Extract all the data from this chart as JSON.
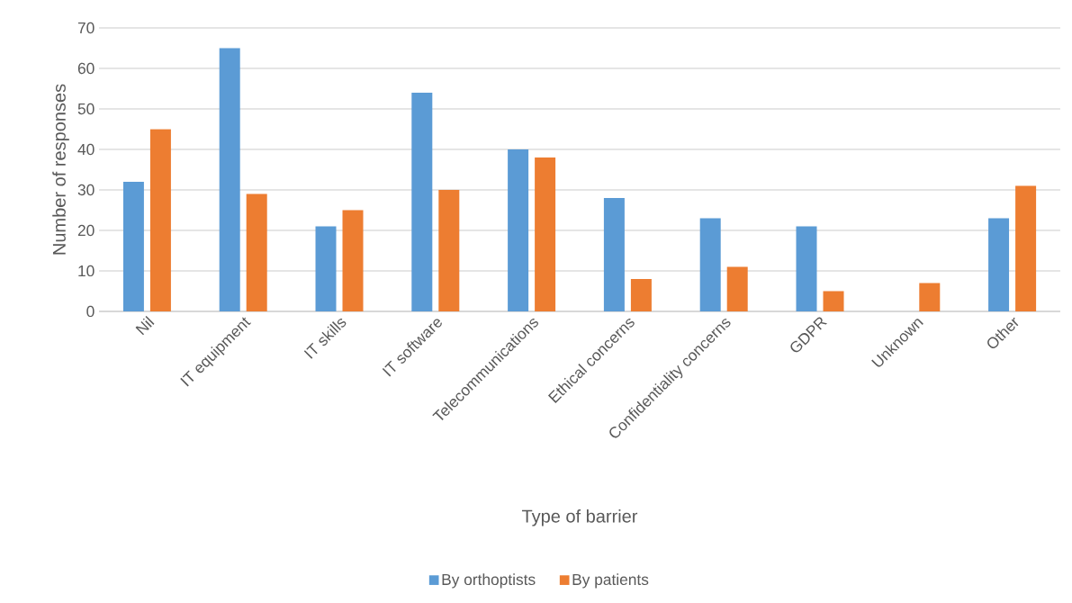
{
  "chart_data": {
    "type": "bar",
    "xlabel": "Type of barrier",
    "ylabel": "Number of responses",
    "categories": [
      "Nil",
      "IT equipment",
      "IT skills",
      "IT software",
      "Telecommunications",
      "Ethical concerns",
      "Confidentiality concerns",
      "GDPR",
      "Unknown",
      "Other"
    ],
    "series": [
      {
        "name": "By orthoptists",
        "color": "#5b9bd5",
        "values": [
          32,
          65,
          21,
          54,
          40,
          28,
          23,
          21,
          null,
          23
        ]
      },
      {
        "name": "By patients",
        "color": "#ed7d31",
        "values": [
          45,
          29,
          25,
          30,
          38,
          8,
          11,
          5,
          7,
          31
        ]
      }
    ],
    "ylim": [
      0,
      70
    ],
    "yticks": [
      0,
      10,
      20,
      30,
      40,
      50,
      60,
      70
    ],
    "grid": "y",
    "legend": "bottom"
  }
}
